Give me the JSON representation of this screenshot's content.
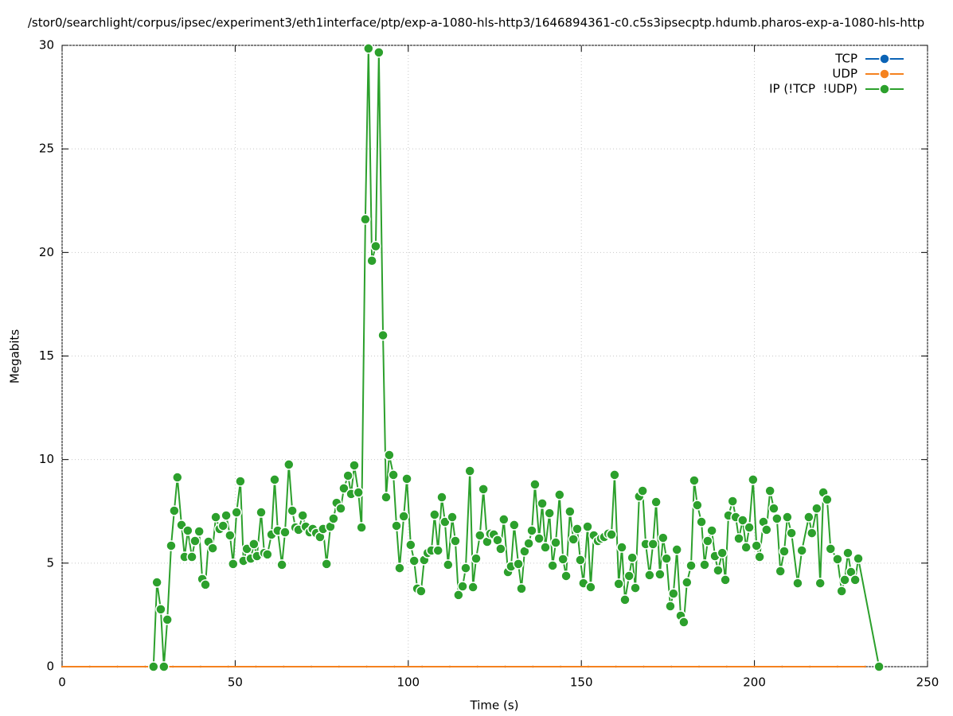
{
  "chart_data": {
    "type": "line",
    "title": "/stor0/searchlight/corpus/ipsec/experiment3/eth1interface/ptp/exp-a-1080-hls-http3/1646894361-c0.c5s3ipsecptp.hdumb.pharos-exp-a-1080-hls-http",
    "x_label": "Time (s)",
    "y_label": "Megabits",
    "xlim": [
      0,
      250
    ],
    "xticks": [
      0,
      50,
      100,
      150,
      200,
      250
    ],
    "ylim": [
      0,
      30
    ],
    "yticks": [
      0,
      5,
      10,
      15,
      20,
      25,
      30
    ],
    "grid": true,
    "legend": "top-right",
    "series": [
      {
        "name": "TCP",
        "color": "#0b63b5",
        "x": [
          0,
          8,
          16,
          24,
          32,
          40,
          48,
          56,
          64,
          72,
          80,
          88,
          96,
          104,
          112,
          120,
          128,
          136,
          144,
          152,
          160,
          168,
          176,
          184,
          192,
          200,
          208,
          216,
          224,
          232
        ],
        "values": [
          0,
          0,
          0,
          0,
          0,
          0,
          0,
          0,
          0,
          0,
          0,
          0,
          0,
          0,
          0,
          0,
          0,
          0,
          0,
          0,
          0,
          0,
          0,
          0,
          0,
          0,
          0,
          0,
          0,
          0
        ]
      },
      {
        "name": "UDP",
        "color": "#f5821f",
        "x": [
          0,
          8,
          16,
          24,
          32,
          40,
          48,
          56,
          64,
          72,
          80,
          88,
          96,
          104,
          112,
          120,
          128,
          136,
          144,
          152,
          160,
          168,
          176,
          184,
          192,
          200,
          208,
          216,
          224,
          232
        ],
        "values": [
          0,
          0,
          0,
          0,
          0,
          0,
          0,
          0,
          0,
          0,
          0,
          0,
          0,
          0,
          0,
          0,
          0,
          0,
          0,
          0,
          0,
          0,
          0,
          0,
          0,
          0,
          0,
          0,
          0,
          0
        ]
      },
      {
        "name": "IP (!TCP  !UDP)",
        "color": "#2ca02c",
        "x": [
          26.4,
          27.4,
          28.5,
          29.4,
          30.4,
          31.5,
          32.4,
          33.3,
          34.5,
          35.4,
          36.3,
          37.5,
          38.4,
          39.6,
          40.5,
          41.4,
          42.3,
          43.5,
          44.4,
          45.5,
          46.5,
          47.4,
          48.5,
          49.4,
          50.4,
          51.5,
          52.4,
          53.4,
          54.5,
          55.4,
          56.3,
          57.5,
          58.4,
          59.3,
          60.5,
          61.4,
          62.3,
          63.5,
          64.4,
          65.5,
          66.5,
          67.4,
          68.3,
          69.5,
          70.4,
          71.5,
          72.4,
          73.4,
          74.5,
          75.4,
          76.4,
          77.5,
          78.4,
          79.3,
          80.5,
          81.4,
          82.6,
          83.5,
          84.4,
          85.6,
          86.5,
          87.6,
          88.5,
          89.5,
          90.6,
          91.5,
          92.7,
          93.6,
          94.5,
          95.7,
          96.6,
          97.5,
          98.7,
          99.6,
          100.7,
          101.7,
          102.6,
          103.7,
          104.6,
          105.6,
          106.7,
          107.6,
          108.6,
          109.7,
          110.6,
          111.5,
          112.7,
          113.6,
          114.5,
          115.7,
          116.6,
          117.8,
          118.7,
          119.6,
          120.7,
          121.7,
          122.8,
          123.7,
          124.7,
          125.8,
          126.7,
          127.6,
          128.8,
          129.7,
          130.6,
          131.8,
          132.7,
          133.6,
          134.8,
          135.7,
          136.6,
          137.8,
          138.7,
          139.6,
          140.8,
          141.7,
          142.6,
          143.7,
          144.7,
          145.6,
          146.7,
          147.7,
          148.8,
          149.7,
          150.6,
          151.8,
          152.7,
          153.6,
          154.8,
          155.7,
          156.6,
          157.8,
          158.7,
          159.6,
          160.8,
          161.7,
          162.6,
          163.8,
          164.7,
          165.6,
          166.7,
          167.7,
          168.6,
          169.7,
          170.7,
          171.6,
          172.7,
          173.6,
          174.6,
          175.7,
          176.6,
          177.6,
          178.7,
          179.6,
          180.5,
          181.7,
          182.6,
          183.5,
          184.7,
          185.6,
          186.5,
          187.7,
          188.6,
          189.5,
          190.7,
          191.6,
          192.5,
          193.7,
          194.6,
          195.5,
          196.6,
          197.6,
          198.5,
          199.6,
          200.6,
          201.5,
          202.6,
          203.5,
          204.5,
          205.6,
          206.5,
          207.5,
          208.6,
          209.5,
          210.7,
          212.5,
          213.7,
          215.7,
          216.6,
          218.0,
          219.0,
          219.9,
          221.0,
          222.0,
          224.0,
          225.2,
          226.1,
          227.0,
          227.9,
          229.1,
          230.0,
          236.0
        ],
        "values": [
          0,
          4.07,
          2.77,
          0,
          2.27,
          5.84,
          7.53,
          9.14,
          6.84,
          5.3,
          6.57,
          5.3,
          6.07,
          6.53,
          4.23,
          3.96,
          6.03,
          5.72,
          7.22,
          6.65,
          6.8,
          7.3,
          6.34,
          4.96,
          7.45,
          8.95,
          5.11,
          5.69,
          5.22,
          5.92,
          5.34,
          7.45,
          5.49,
          5.42,
          6.38,
          9.03,
          6.57,
          4.92,
          6.49,
          9.76,
          7.53,
          6.72,
          6.61,
          7.3,
          6.76,
          6.49,
          6.65,
          6.45,
          6.26,
          6.65,
          4.96,
          6.76,
          7.15,
          7.91,
          7.64,
          8.61,
          9.22,
          8.34,
          9.72,
          8.41,
          6.72,
          21.6,
          29.85,
          19.6,
          20.3,
          29.66,
          16.0,
          8.18,
          10.22,
          9.26,
          6.8,
          4.76,
          7.26,
          9.07,
          5.88,
          5.11,
          3.77,
          3.65,
          5.15,
          5.49,
          5.61,
          7.34,
          5.61,
          8.18,
          6.99,
          4.92,
          7.22,
          6.07,
          3.46,
          3.88,
          4.76,
          9.45,
          3.84,
          5.22,
          6.34,
          8.57,
          6.03,
          6.42,
          6.38,
          6.11,
          5.69,
          7.11,
          4.57,
          4.84,
          6.84,
          4.96,
          3.77,
          5.57,
          5.95,
          6.57,
          8.8,
          6.19,
          7.88,
          5.76,
          7.41,
          4.88,
          5.99,
          8.3,
          5.19,
          4.38,
          7.49,
          6.15,
          6.65,
          5.15,
          4.03,
          6.76,
          3.84,
          6.34,
          6.07,
          6.19,
          6.26,
          6.42,
          6.38,
          9.26,
          4.0,
          5.76,
          3.23,
          4.38,
          5.26,
          3.8,
          8.22,
          8.49,
          5.92,
          4.42,
          5.92,
          7.95,
          4.46,
          6.22,
          5.22,
          2.92,
          3.53,
          5.65,
          2.46,
          2.15,
          4.07,
          4.88,
          8.99,
          7.8,
          6.99,
          4.92,
          6.07,
          6.57,
          5.34,
          4.65,
          5.49,
          4.19,
          7.3,
          7.99,
          7.22,
          6.19,
          7.07,
          5.76,
          6.72,
          9.03,
          5.84,
          5.3,
          6.99,
          6.61,
          8.49,
          7.64,
          7.15,
          4.61,
          5.57,
          7.22,
          6.45,
          4.03,
          5.61,
          7.22,
          6.45,
          7.64,
          4.03,
          8.41,
          8.07,
          5.69,
          5.19,
          3.65,
          4.19,
          5.49,
          4.57,
          4.19,
          5.22,
          0
        ]
      }
    ]
  }
}
